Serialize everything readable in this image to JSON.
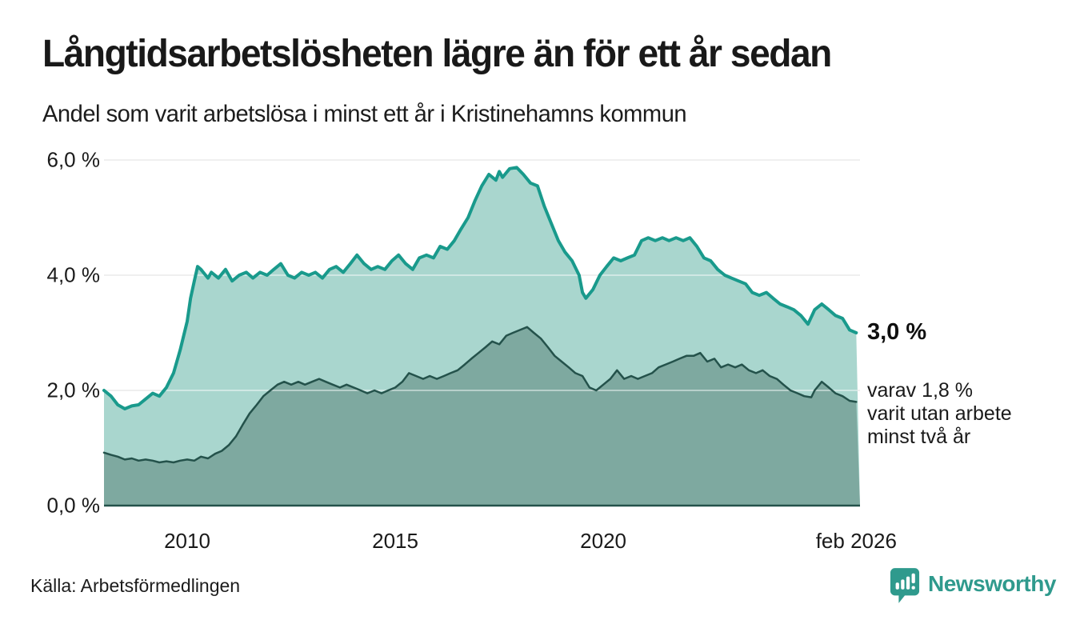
{
  "header": {
    "title": "Långtidsarbetslösheten lägre än för ett år sedan",
    "subtitle": "Andel som varit arbetslösa i minst ett år i Kristinehamns kommun"
  },
  "annotations": {
    "end_value_main": "3,0 %",
    "end_label_sub": [
      "varav 1,8 %",
      "varit utan arbete",
      "minst två år"
    ]
  },
  "footer": {
    "source": "Källa: Arbetsförmedlingen",
    "brand_name": "Newsworthy"
  },
  "icons": {
    "brand_logo": "newsworthy-speech-bubble-bar-chart-icon"
  },
  "colors": {
    "background": "#ffffff",
    "series_1yr_line": "#199a8c",
    "series_1yr_fill": "#a9d6ce",
    "series_2yr_line": "#24524b",
    "series_2yr_fill": "#7ea9a0",
    "gridline": "#e2e2e2",
    "gridline_over_fill": "rgba(255,255,255,0.45)",
    "text": "#1a1a1a",
    "brand_teal": "#2f9a8d"
  },
  "chart_data": {
    "type": "area",
    "title": "Långtidsarbetslösheten lägre än för ett år sedan",
    "subtitle": "Andel som varit arbetslösa i minst ett år i Kristinehamns kommun",
    "unit": "%",
    "grid": true,
    "x_axis": {
      "range": [
        2008.0,
        2026.17
      ],
      "ticks": [
        {
          "year": 2010,
          "label": "2010"
        },
        {
          "year": 2015,
          "label": "2015"
        },
        {
          "year": 2020,
          "label": "2020"
        },
        {
          "year": 2026.08,
          "label": "feb 2026"
        }
      ]
    },
    "y_axis": {
      "range": [
        0,
        6.2
      ],
      "gridline_values": [
        2,
        4,
        6
      ],
      "ticks": [
        {
          "value": 0,
          "label": "0,0 %"
        },
        {
          "value": 2,
          "label": "2,0 %"
        },
        {
          "value": 4,
          "label": "4,0 %"
        },
        {
          "value": 6,
          "label": "6,0 %"
        }
      ]
    },
    "series": [
      {
        "name": "Arbetslösa minst ett år",
        "end_value": 3.0,
        "end_label": "3,0 %",
        "line_color": "#199a8c",
        "fill_color": "#a9d6ce",
        "line_width": 4,
        "points": [
          [
            2008.0,
            2.0
          ],
          [
            2008.17,
            1.9
          ],
          [
            2008.33,
            1.75
          ],
          [
            2008.5,
            1.68
          ],
          [
            2008.67,
            1.73
          ],
          [
            2008.83,
            1.75
          ],
          [
            2009.0,
            1.85
          ],
          [
            2009.17,
            1.95
          ],
          [
            2009.33,
            1.9
          ],
          [
            2009.5,
            2.05
          ],
          [
            2009.67,
            2.3
          ],
          [
            2009.83,
            2.7
          ],
          [
            2010.0,
            3.2
          ],
          [
            2010.08,
            3.6
          ],
          [
            2010.17,
            3.9
          ],
          [
            2010.25,
            4.15
          ],
          [
            2010.33,
            4.1
          ],
          [
            2010.5,
            3.95
          ],
          [
            2010.58,
            4.05
          ],
          [
            2010.75,
            3.95
          ],
          [
            2010.92,
            4.1
          ],
          [
            2011.08,
            3.9
          ],
          [
            2011.25,
            4.0
          ],
          [
            2011.42,
            4.05
          ],
          [
            2011.58,
            3.95
          ],
          [
            2011.75,
            4.05
          ],
          [
            2011.92,
            4.0
          ],
          [
            2012.08,
            4.1
          ],
          [
            2012.25,
            4.2
          ],
          [
            2012.42,
            4.0
          ],
          [
            2012.58,
            3.95
          ],
          [
            2012.75,
            4.05
          ],
          [
            2012.92,
            4.0
          ],
          [
            2013.08,
            4.05
          ],
          [
            2013.25,
            3.95
          ],
          [
            2013.42,
            4.1
          ],
          [
            2013.58,
            4.15
          ],
          [
            2013.75,
            4.05
          ],
          [
            2013.92,
            4.2
          ],
          [
            2014.08,
            4.35
          ],
          [
            2014.25,
            4.2
          ],
          [
            2014.42,
            4.1
          ],
          [
            2014.58,
            4.15
          ],
          [
            2014.75,
            4.1
          ],
          [
            2014.92,
            4.25
          ],
          [
            2015.08,
            4.35
          ],
          [
            2015.25,
            4.2
          ],
          [
            2015.42,
            4.1
          ],
          [
            2015.58,
            4.3
          ],
          [
            2015.75,
            4.35
          ],
          [
            2015.92,
            4.3
          ],
          [
            2016.08,
            4.5
          ],
          [
            2016.25,
            4.45
          ],
          [
            2016.42,
            4.6
          ],
          [
            2016.58,
            4.8
          ],
          [
            2016.75,
            5.0
          ],
          [
            2016.92,
            5.3
          ],
          [
            2017.08,
            5.55
          ],
          [
            2017.25,
            5.75
          ],
          [
            2017.42,
            5.65
          ],
          [
            2017.5,
            5.8
          ],
          [
            2017.58,
            5.7
          ],
          [
            2017.75,
            5.85
          ],
          [
            2017.92,
            5.87
          ],
          [
            2018.08,
            5.75
          ],
          [
            2018.25,
            5.6
          ],
          [
            2018.42,
            5.55
          ],
          [
            2018.58,
            5.2
          ],
          [
            2018.75,
            4.9
          ],
          [
            2018.92,
            4.6
          ],
          [
            2019.08,
            4.4
          ],
          [
            2019.25,
            4.25
          ],
          [
            2019.42,
            4.0
          ],
          [
            2019.5,
            3.7
          ],
          [
            2019.58,
            3.6
          ],
          [
            2019.75,
            3.75
          ],
          [
            2019.92,
            4.0
          ],
          [
            2020.08,
            4.15
          ],
          [
            2020.25,
            4.3
          ],
          [
            2020.42,
            4.25
          ],
          [
            2020.58,
            4.3
          ],
          [
            2020.75,
            4.35
          ],
          [
            2020.92,
            4.6
          ],
          [
            2021.08,
            4.65
          ],
          [
            2021.25,
            4.6
          ],
          [
            2021.42,
            4.65
          ],
          [
            2021.58,
            4.6
          ],
          [
            2021.75,
            4.65
          ],
          [
            2021.92,
            4.6
          ],
          [
            2022.08,
            4.65
          ],
          [
            2022.25,
            4.5
          ],
          [
            2022.42,
            4.3
          ],
          [
            2022.58,
            4.25
          ],
          [
            2022.75,
            4.1
          ],
          [
            2022.92,
            4.0
          ],
          [
            2023.08,
            3.95
          ],
          [
            2023.25,
            3.9
          ],
          [
            2023.42,
            3.85
          ],
          [
            2023.58,
            3.7
          ],
          [
            2023.75,
            3.65
          ],
          [
            2023.92,
            3.7
          ],
          [
            2024.08,
            3.6
          ],
          [
            2024.25,
            3.5
          ],
          [
            2024.42,
            3.45
          ],
          [
            2024.58,
            3.4
          ],
          [
            2024.75,
            3.3
          ],
          [
            2024.92,
            3.15
          ],
          [
            2025.08,
            3.4
          ],
          [
            2025.25,
            3.5
          ],
          [
            2025.42,
            3.4
          ],
          [
            2025.58,
            3.3
          ],
          [
            2025.75,
            3.25
          ],
          [
            2025.92,
            3.05
          ],
          [
            2026.08,
            3.0
          ]
        ]
      },
      {
        "name": "Arbetslösa minst två år",
        "end_value": 1.8,
        "end_label": "varav 1,8 % varit utan arbete minst två år",
        "line_color": "#24524b",
        "fill_color": "#7ea9a0",
        "line_width": 2.5,
        "points": [
          [
            2008.0,
            0.92
          ],
          [
            2008.17,
            0.88
          ],
          [
            2008.33,
            0.85
          ],
          [
            2008.5,
            0.8
          ],
          [
            2008.67,
            0.82
          ],
          [
            2008.83,
            0.78
          ],
          [
            2009.0,
            0.8
          ],
          [
            2009.17,
            0.78
          ],
          [
            2009.33,
            0.75
          ],
          [
            2009.5,
            0.77
          ],
          [
            2009.67,
            0.75
          ],
          [
            2009.83,
            0.78
          ],
          [
            2010.0,
            0.8
          ],
          [
            2010.17,
            0.78
          ],
          [
            2010.33,
            0.85
          ],
          [
            2010.5,
            0.82
          ],
          [
            2010.67,
            0.9
          ],
          [
            2010.83,
            0.95
          ],
          [
            2011.0,
            1.05
          ],
          [
            2011.17,
            1.2
          ],
          [
            2011.33,
            1.4
          ],
          [
            2011.5,
            1.6
          ],
          [
            2011.67,
            1.75
          ],
          [
            2011.83,
            1.9
          ],
          [
            2012.0,
            2.0
          ],
          [
            2012.17,
            2.1
          ],
          [
            2012.33,
            2.15
          ],
          [
            2012.5,
            2.1
          ],
          [
            2012.67,
            2.15
          ],
          [
            2012.83,
            2.1
          ],
          [
            2013.0,
            2.15
          ],
          [
            2013.17,
            2.2
          ],
          [
            2013.33,
            2.15
          ],
          [
            2013.5,
            2.1
          ],
          [
            2013.67,
            2.05
          ],
          [
            2013.83,
            2.1
          ],
          [
            2014.0,
            2.05
          ],
          [
            2014.17,
            2.0
          ],
          [
            2014.33,
            1.95
          ],
          [
            2014.5,
            2.0
          ],
          [
            2014.67,
            1.95
          ],
          [
            2014.83,
            2.0
          ],
          [
            2015.0,
            2.05
          ],
          [
            2015.17,
            2.15
          ],
          [
            2015.33,
            2.3
          ],
          [
            2015.5,
            2.25
          ],
          [
            2015.67,
            2.2
          ],
          [
            2015.83,
            2.25
          ],
          [
            2016.0,
            2.2
          ],
          [
            2016.17,
            2.25
          ],
          [
            2016.33,
            2.3
          ],
          [
            2016.5,
            2.35
          ],
          [
            2016.67,
            2.45
          ],
          [
            2016.83,
            2.55
          ],
          [
            2017.0,
            2.65
          ],
          [
            2017.17,
            2.75
          ],
          [
            2017.33,
            2.85
          ],
          [
            2017.5,
            2.8
          ],
          [
            2017.67,
            2.95
          ],
          [
            2017.83,
            3.0
          ],
          [
            2018.0,
            3.05
          ],
          [
            2018.17,
            3.1
          ],
          [
            2018.33,
            3.0
          ],
          [
            2018.5,
            2.9
          ],
          [
            2018.67,
            2.75
          ],
          [
            2018.83,
            2.6
          ],
          [
            2019.0,
            2.5
          ],
          [
            2019.17,
            2.4
          ],
          [
            2019.33,
            2.3
          ],
          [
            2019.5,
            2.25
          ],
          [
            2019.67,
            2.05
          ],
          [
            2019.83,
            2.0
          ],
          [
            2020.0,
            2.1
          ],
          [
            2020.17,
            2.2
          ],
          [
            2020.33,
            2.35
          ],
          [
            2020.5,
            2.2
          ],
          [
            2020.67,
            2.25
          ],
          [
            2020.83,
            2.2
          ],
          [
            2021.0,
            2.25
          ],
          [
            2021.17,
            2.3
          ],
          [
            2021.33,
            2.4
          ],
          [
            2021.5,
            2.45
          ],
          [
            2021.67,
            2.5
          ],
          [
            2021.83,
            2.55
          ],
          [
            2022.0,
            2.6
          ],
          [
            2022.17,
            2.6
          ],
          [
            2022.33,
            2.65
          ],
          [
            2022.5,
            2.5
          ],
          [
            2022.67,
            2.55
          ],
          [
            2022.83,
            2.4
          ],
          [
            2023.0,
            2.45
          ],
          [
            2023.17,
            2.4
          ],
          [
            2023.33,
            2.45
          ],
          [
            2023.5,
            2.35
          ],
          [
            2023.67,
            2.3
          ],
          [
            2023.83,
            2.35
          ],
          [
            2024.0,
            2.25
          ],
          [
            2024.17,
            2.2
          ],
          [
            2024.33,
            2.1
          ],
          [
            2024.5,
            2.0
          ],
          [
            2024.67,
            1.95
          ],
          [
            2024.83,
            1.9
          ],
          [
            2025.0,
            1.88
          ],
          [
            2025.08,
            2.0
          ],
          [
            2025.25,
            2.15
          ],
          [
            2025.42,
            2.05
          ],
          [
            2025.58,
            1.95
          ],
          [
            2025.75,
            1.9
          ],
          [
            2025.92,
            1.82
          ],
          [
            2026.08,
            1.8
          ]
        ]
      }
    ]
  }
}
